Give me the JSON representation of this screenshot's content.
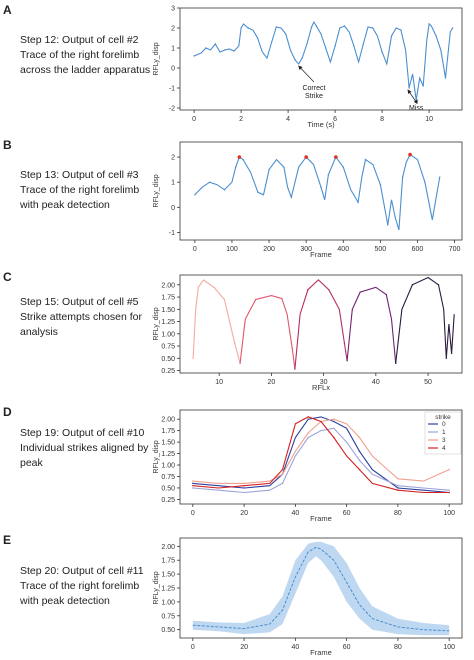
{
  "panels": [
    {
      "label": "A",
      "desc": [
        "Step 12: Output of cell #2",
        "Trace of the right forelimb",
        "across the ladder apparatus"
      ],
      "chart_data": {
        "type": "line",
        "xlabel": "Time (s)",
        "ylabel": "RFLy_disp",
        "xlim": [
          -0.6,
          11.4
        ],
        "ylim": [
          -2.1,
          3.0
        ],
        "xticks": [
          0,
          2,
          4,
          6,
          8,
          10
        ],
        "yticks": [
          -2,
          -1,
          0,
          1,
          2,
          3
        ],
        "series": [
          {
            "color": "#4a8fd0",
            "x": [
              0,
              0.3,
              0.5,
              0.7,
              0.9,
              1.1,
              1.3,
              1.5,
              1.7,
              1.9,
              2.0,
              2.1,
              2.3,
              2.5,
              2.7,
              2.9,
              3.1,
              3.3,
              3.5,
              3.7,
              3.9,
              4.1,
              4.3,
              4.45,
              4.6,
              4.8,
              5.0,
              5.1,
              5.2,
              5.4,
              5.6,
              5.8,
              6.0,
              6.2,
              6.4,
              6.6,
              6.8,
              7.0,
              7.2,
              7.4,
              7.6,
              7.8,
              8.0,
              8.2,
              8.4,
              8.6,
              8.8,
              9.0,
              9.15,
              9.3,
              9.45,
              9.6,
              9.75,
              9.9,
              10.0,
              10.1,
              10.3,
              10.5,
              10.7,
              10.9,
              11.0
            ],
            "y": [
              0.6,
              0.75,
              1.0,
              0.9,
              1.2,
              0.8,
              0.9,
              0.95,
              0.85,
              1.1,
              2.0,
              2.2,
              2.0,
              1.9,
              1.5,
              0.8,
              0.5,
              1.3,
              2.05,
              2.0,
              1.7,
              0.9,
              0.4,
              0.2,
              0.5,
              1.2,
              2.05,
              2.3,
              2.1,
              1.7,
              1.0,
              0.3,
              1.1,
              2.0,
              2.1,
              1.8,
              1.1,
              0.3,
              1.2,
              2.05,
              2.0,
              1.6,
              0.8,
              0.2,
              1.6,
              2.0,
              1.9,
              0.9,
              -1.0,
              -0.3,
              -1.6,
              -0.5,
              -0.9,
              1.4,
              2.2,
              2.1,
              1.6,
              0.9,
              -0.5,
              1.8,
              2.0
            ]
          }
        ],
        "annotations": [
          {
            "text": "Correct",
            "text2": "Strike",
            "x": 5.1,
            "y": -1.1,
            "tx": 4.45,
            "ty": 0.1
          },
          {
            "text": "Miss",
            "x": 9.45,
            "y": -2.1,
            "tx": 9.1,
            "ty": -1.1,
            "tx2": 9.5,
            "ty2": -1.6
          }
        ]
      }
    },
    {
      "label": "B",
      "desc": [
        "Step 13: Output of cell #3",
        "Trace of the right forelimb",
        "with peak detection"
      ],
      "chart_data": {
        "type": "line",
        "xlabel": "Frame",
        "ylabel": "RFLy_disp",
        "xlim": [
          -40,
          720
        ],
        "ylim": [
          -1.3,
          2.6
        ],
        "xticks": [
          0,
          100,
          200,
          300,
          400,
          500,
          600,
          700
        ],
        "xticklabels": [
          "0",
          "100",
          "200",
          "300",
          "400",
          "500",
          "600",
          "700"
        ],
        "yticks": [
          -1,
          0,
          1,
          2
        ],
        "series": [
          {
            "color": "#4a8fd0",
            "x": [
              0,
              20,
              40,
              60,
              80,
              100,
              110,
              120,
              130,
              150,
              170,
              185,
              200,
              220,
              240,
              250,
              260,
              280,
              300,
              320,
              340,
              350,
              360,
              380,
              400,
              420,
              440,
              450,
              460,
              480,
              500,
              510,
              520,
              530,
              540,
              550,
              560,
              570,
              580,
              600,
              620,
              640,
              660
            ],
            "y": [
              0.5,
              0.8,
              1.0,
              0.9,
              0.7,
              1.0,
              1.6,
              2.0,
              1.9,
              1.4,
              0.6,
              0.5,
              1.5,
              1.9,
              1.6,
              0.8,
              0.4,
              1.6,
              2.0,
              1.7,
              0.8,
              0.3,
              1.3,
              2.0,
              1.6,
              0.7,
              0.2,
              1.2,
              1.9,
              1.7,
              0.9,
              0.1,
              -0.7,
              0.3,
              -0.4,
              -0.9,
              1.2,
              1.8,
              2.1,
              1.9,
              1.0,
              -0.5,
              1.2
            ]
          }
        ],
        "peaks_x": [
          120,
          300,
          380,
          580
        ],
        "peaks_color": "#e03020"
      }
    },
    {
      "label": "C",
      "desc": [
        "Step 15: Output of cell #5",
        "Strike attempts chosen for",
        "analysis"
      ],
      "chart_data": {
        "type": "line",
        "xlabel": "RFLx",
        "ylabel": "RFLy_disp",
        "xlim": [
          2.5,
          56.5
        ],
        "ylim": [
          0.2,
          2.2
        ],
        "xticks": [
          10,
          20,
          30,
          40,
          50
        ],
        "yticks": [
          0.25,
          0.5,
          0.75,
          1.0,
          1.25,
          1.5,
          1.75,
          2.0
        ],
        "yticklabels": [
          "0.25",
          "0.50",
          "0.75",
          "1.00",
          "1.25",
          "1.50",
          "1.75",
          "2.00"
        ],
        "series": [
          {
            "color": "#f4a9a0",
            "x": [
              5,
              5.5,
              6,
              7,
              9,
              11,
              13,
              14
            ],
            "y": [
              0.5,
              1.5,
              1.95,
              2.1,
              1.95,
              1.7,
              0.8,
              0.4
            ]
          },
          {
            "color": "#e0566a",
            "x": [
              14,
              15,
              17,
              20,
              22,
              23,
              24,
              24.5
            ],
            "y": [
              0.4,
              1.3,
              1.7,
              1.78,
              1.72,
              1.4,
              0.7,
              0.28
            ]
          },
          {
            "color": "#b72c63",
            "x": [
              24.5,
              25.5,
              27,
              29,
              31,
              33,
              34,
              34.5
            ],
            "y": [
              0.28,
              1.4,
              1.9,
              2.1,
              1.9,
              1.5,
              0.8,
              0.45
            ]
          },
          {
            "color": "#6c2473",
            "x": [
              34.5,
              35.5,
              37,
              40,
              42,
              43,
              43.8
            ],
            "y": [
              0.45,
              1.5,
              1.85,
              1.95,
              1.8,
              1.3,
              0.4
            ]
          },
          {
            "color": "#2a1a40",
            "x": [
              43.8,
              45,
              47,
              50,
              52,
              53,
              53.5,
              54,
              54.5,
              55
            ],
            "y": [
              0.4,
              1.5,
              2.0,
              2.15,
              2.0,
              1.5,
              0.5,
              1.2,
              0.6,
              1.4
            ]
          }
        ]
      }
    },
    {
      "label": "D",
      "desc": [
        "Step 19: Output of cell #10",
        "Individual strikes aligned by",
        "peak"
      ],
      "chart_data": {
        "type": "line",
        "xlabel": "Frame",
        "ylabel": "RFLy_disp",
        "xlim": [
          -5,
          105
        ],
        "ylim": [
          0.15,
          2.2
        ],
        "xticks": [
          0,
          20,
          40,
          60,
          80,
          100
        ],
        "yticks": [
          0.25,
          0.5,
          0.75,
          1.0,
          1.25,
          1.5,
          1.75,
          2.0
        ],
        "yticklabels": [
          "0.25",
          "0.50",
          "0.75",
          "1.00",
          "1.25",
          "1.50",
          "1.75",
          "2.00"
        ],
        "legend_title": "strike",
        "x": [
          0,
          10,
          20,
          30,
          35,
          40,
          45,
          50,
          55,
          60,
          65,
          70,
          80,
          90,
          100
        ],
        "series": [
          {
            "name": "0",
            "color": "#2b3f9e",
            "values": [
              0.6,
              0.55,
              0.5,
              0.55,
              0.8,
              1.6,
              2.0,
              2.05,
              1.95,
              1.8,
              1.3,
              0.9,
              0.5,
              0.45,
              0.4
            ]
          },
          {
            "name": "1",
            "color": "#9aa3d8",
            "values": [
              0.5,
              0.45,
              0.4,
              0.45,
              0.6,
              1.2,
              1.6,
              1.75,
              1.8,
              1.5,
              1.1,
              0.8,
              0.55,
              0.5,
              0.45
            ]
          },
          {
            "name": "3",
            "color": "#f0a090",
            "values": [
              0.65,
              0.6,
              0.6,
              0.65,
              0.8,
              1.3,
              1.7,
              1.95,
              2.0,
              1.9,
              1.6,
              1.2,
              0.7,
              0.65,
              0.9
            ]
          },
          {
            "name": "4",
            "color": "#d42020",
            "values": [
              0.55,
              0.5,
              0.55,
              0.6,
              0.9,
              1.9,
              2.05,
              1.95,
              1.6,
              1.2,
              0.9,
              0.6,
              0.45,
              0.4,
              0.4
            ]
          }
        ]
      }
    },
    {
      "label": "E",
      "desc": [
        "Step 20: Output of cell #11",
        "Trace of the right forelimb",
        "with peak detection"
      ],
      "chart_data": {
        "type": "area",
        "xlabel": "Frame",
        "ylabel": "RFLy_disp",
        "xlim": [
          -5,
          105
        ],
        "ylim": [
          0.35,
          2.15
        ],
        "xticks": [
          0,
          20,
          40,
          60,
          80,
          100
        ],
        "yticks": [
          0.5,
          0.75,
          1.0,
          1.25,
          1.5,
          1.75,
          2.0
        ],
        "yticklabels": [
          "0.50",
          "0.75",
          "1.00",
          "1.25",
          "1.50",
          "1.75",
          "2.00"
        ],
        "x": [
          0,
          10,
          20,
          30,
          35,
          40,
          45,
          48,
          50,
          55,
          60,
          65,
          70,
          80,
          90,
          100
        ],
        "mean": [
          0.58,
          0.55,
          0.52,
          0.6,
          0.85,
          1.45,
          1.9,
          1.98,
          1.95,
          1.75,
          1.35,
          0.95,
          0.7,
          0.55,
          0.5,
          0.48
        ],
        "lower": [
          0.5,
          0.47,
          0.42,
          0.45,
          0.6,
          1.15,
          1.7,
          1.82,
          1.75,
          1.45,
          1.0,
          0.7,
          0.5,
          0.42,
          0.4,
          0.4
        ],
        "upper": [
          0.66,
          0.63,
          0.62,
          0.78,
          1.1,
          1.75,
          2.05,
          2.08,
          2.08,
          2.0,
          1.7,
          1.25,
          0.92,
          0.7,
          0.62,
          0.58
        ],
        "color": "#4a8fd0",
        "band_color": "#aacbec"
      }
    }
  ]
}
